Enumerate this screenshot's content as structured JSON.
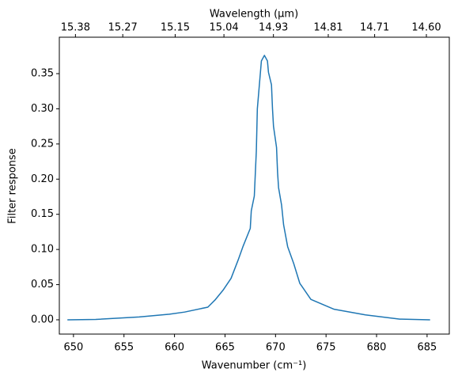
{
  "chart_data": {
    "type": "line",
    "xlabel": "Wavenumber (cm⁻¹)",
    "ylabel": "Filter response",
    "x2label": "Wavelength (μm)",
    "color": "#1f77b4",
    "xlim": [
      648.6,
      687.2
    ],
    "ylim": [
      -0.0203,
      0.4018
    ],
    "xticks": [
      650,
      655,
      660,
      665,
      670,
      675,
      680,
      685
    ],
    "yticks": [
      {
        "value": 0,
        "label": "0.00"
      },
      0.05,
      {
        "value": 0.1,
        "label": "0.10"
      },
      0.15,
      {
        "value": 0.2,
        "label": "0.20"
      },
      0.25,
      {
        "value": 0.3,
        "label": "0.30"
      },
      0.35
    ],
    "x2ticks": [
      15.38,
      15.27,
      15.15,
      15.04,
      14.93,
      14.81,
      14.71,
      {
        "value": 14.6,
        "label": "14.60"
      }
    ],
    "x": [
      649.4,
      652.2,
      656.5,
      659.5,
      661.0,
      663.3,
      664.0,
      664.8,
      665.6,
      666.3,
      666.8,
      667.5,
      667.6,
      667.9,
      668.1,
      668.2,
      668.6,
      668.9,
      669.2,
      669.3,
      669.6,
      669.7,
      669.8,
      670.1,
      670.2,
      670.3,
      670.6,
      670.8,
      671.2,
      671.8,
      672.4,
      673.5,
      675.8,
      678.9,
      682.3,
      685.3
    ],
    "values": [
      0.0,
      0.0005,
      0.004,
      0.008,
      0.011,
      0.018,
      0.028,
      0.042,
      0.059,
      0.085,
      0.105,
      0.13,
      0.155,
      0.176,
      0.24,
      0.3,
      0.368,
      0.376,
      0.368,
      0.352,
      0.334,
      0.3,
      0.275,
      0.245,
      0.21,
      0.188,
      0.163,
      0.135,
      0.104,
      0.08,
      0.052,
      0.029,
      0.015,
      0.007,
      0.001,
      0.0
    ]
  }
}
